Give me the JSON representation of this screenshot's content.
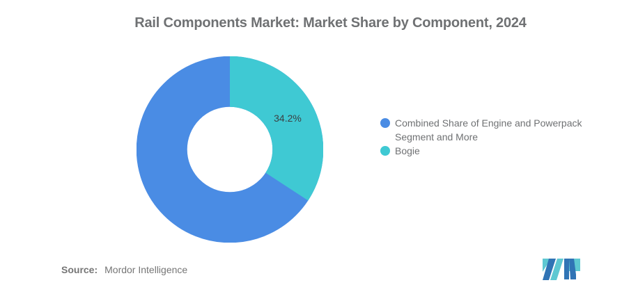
{
  "title": "Rail Components Market: Market Share by Component, 2024",
  "chart_data": {
    "type": "pie",
    "subtype": "donut",
    "title": "Rail Components Market: Market Share by Component, 2024",
    "units": "percent",
    "total": 100,
    "inner_radius_ratio": 0.455,
    "legend_position": "right",
    "rotation": "first slice (Bogie) starts at 12 o'clock, clockwise",
    "series": [
      {
        "name": "Combined Share of Engine and Powerpack Segment and More",
        "value": 65.8,
        "color": "#4A8CE4",
        "start_angle_deg": 123.12,
        "label": ""
      },
      {
        "name": "Bogie",
        "value": 34.2,
        "color": "#3FC9D3",
        "start_angle_deg": 0,
        "label": "34.2%"
      }
    ]
  },
  "legend": {
    "items": [
      {
        "label": "Combined Share of Engine and Powerpack Segment and More",
        "color": "#4A8CE4"
      },
      {
        "label": "Bogie",
        "color": "#3FC9D3"
      }
    ]
  },
  "source": {
    "label": "Source:",
    "value": "Mordor Intelligence"
  },
  "logo": {
    "alt": "mordor-intelligence-logo",
    "colors": {
      "blue": "#3074B5",
      "teal": "#5EC8D2"
    }
  },
  "colors": {
    "title_text": "#6F7173",
    "legend_text": "#6F7173",
    "slice_label_text": "#3C4043",
    "source_text": "#757575",
    "background": "#FFFFFF"
  }
}
